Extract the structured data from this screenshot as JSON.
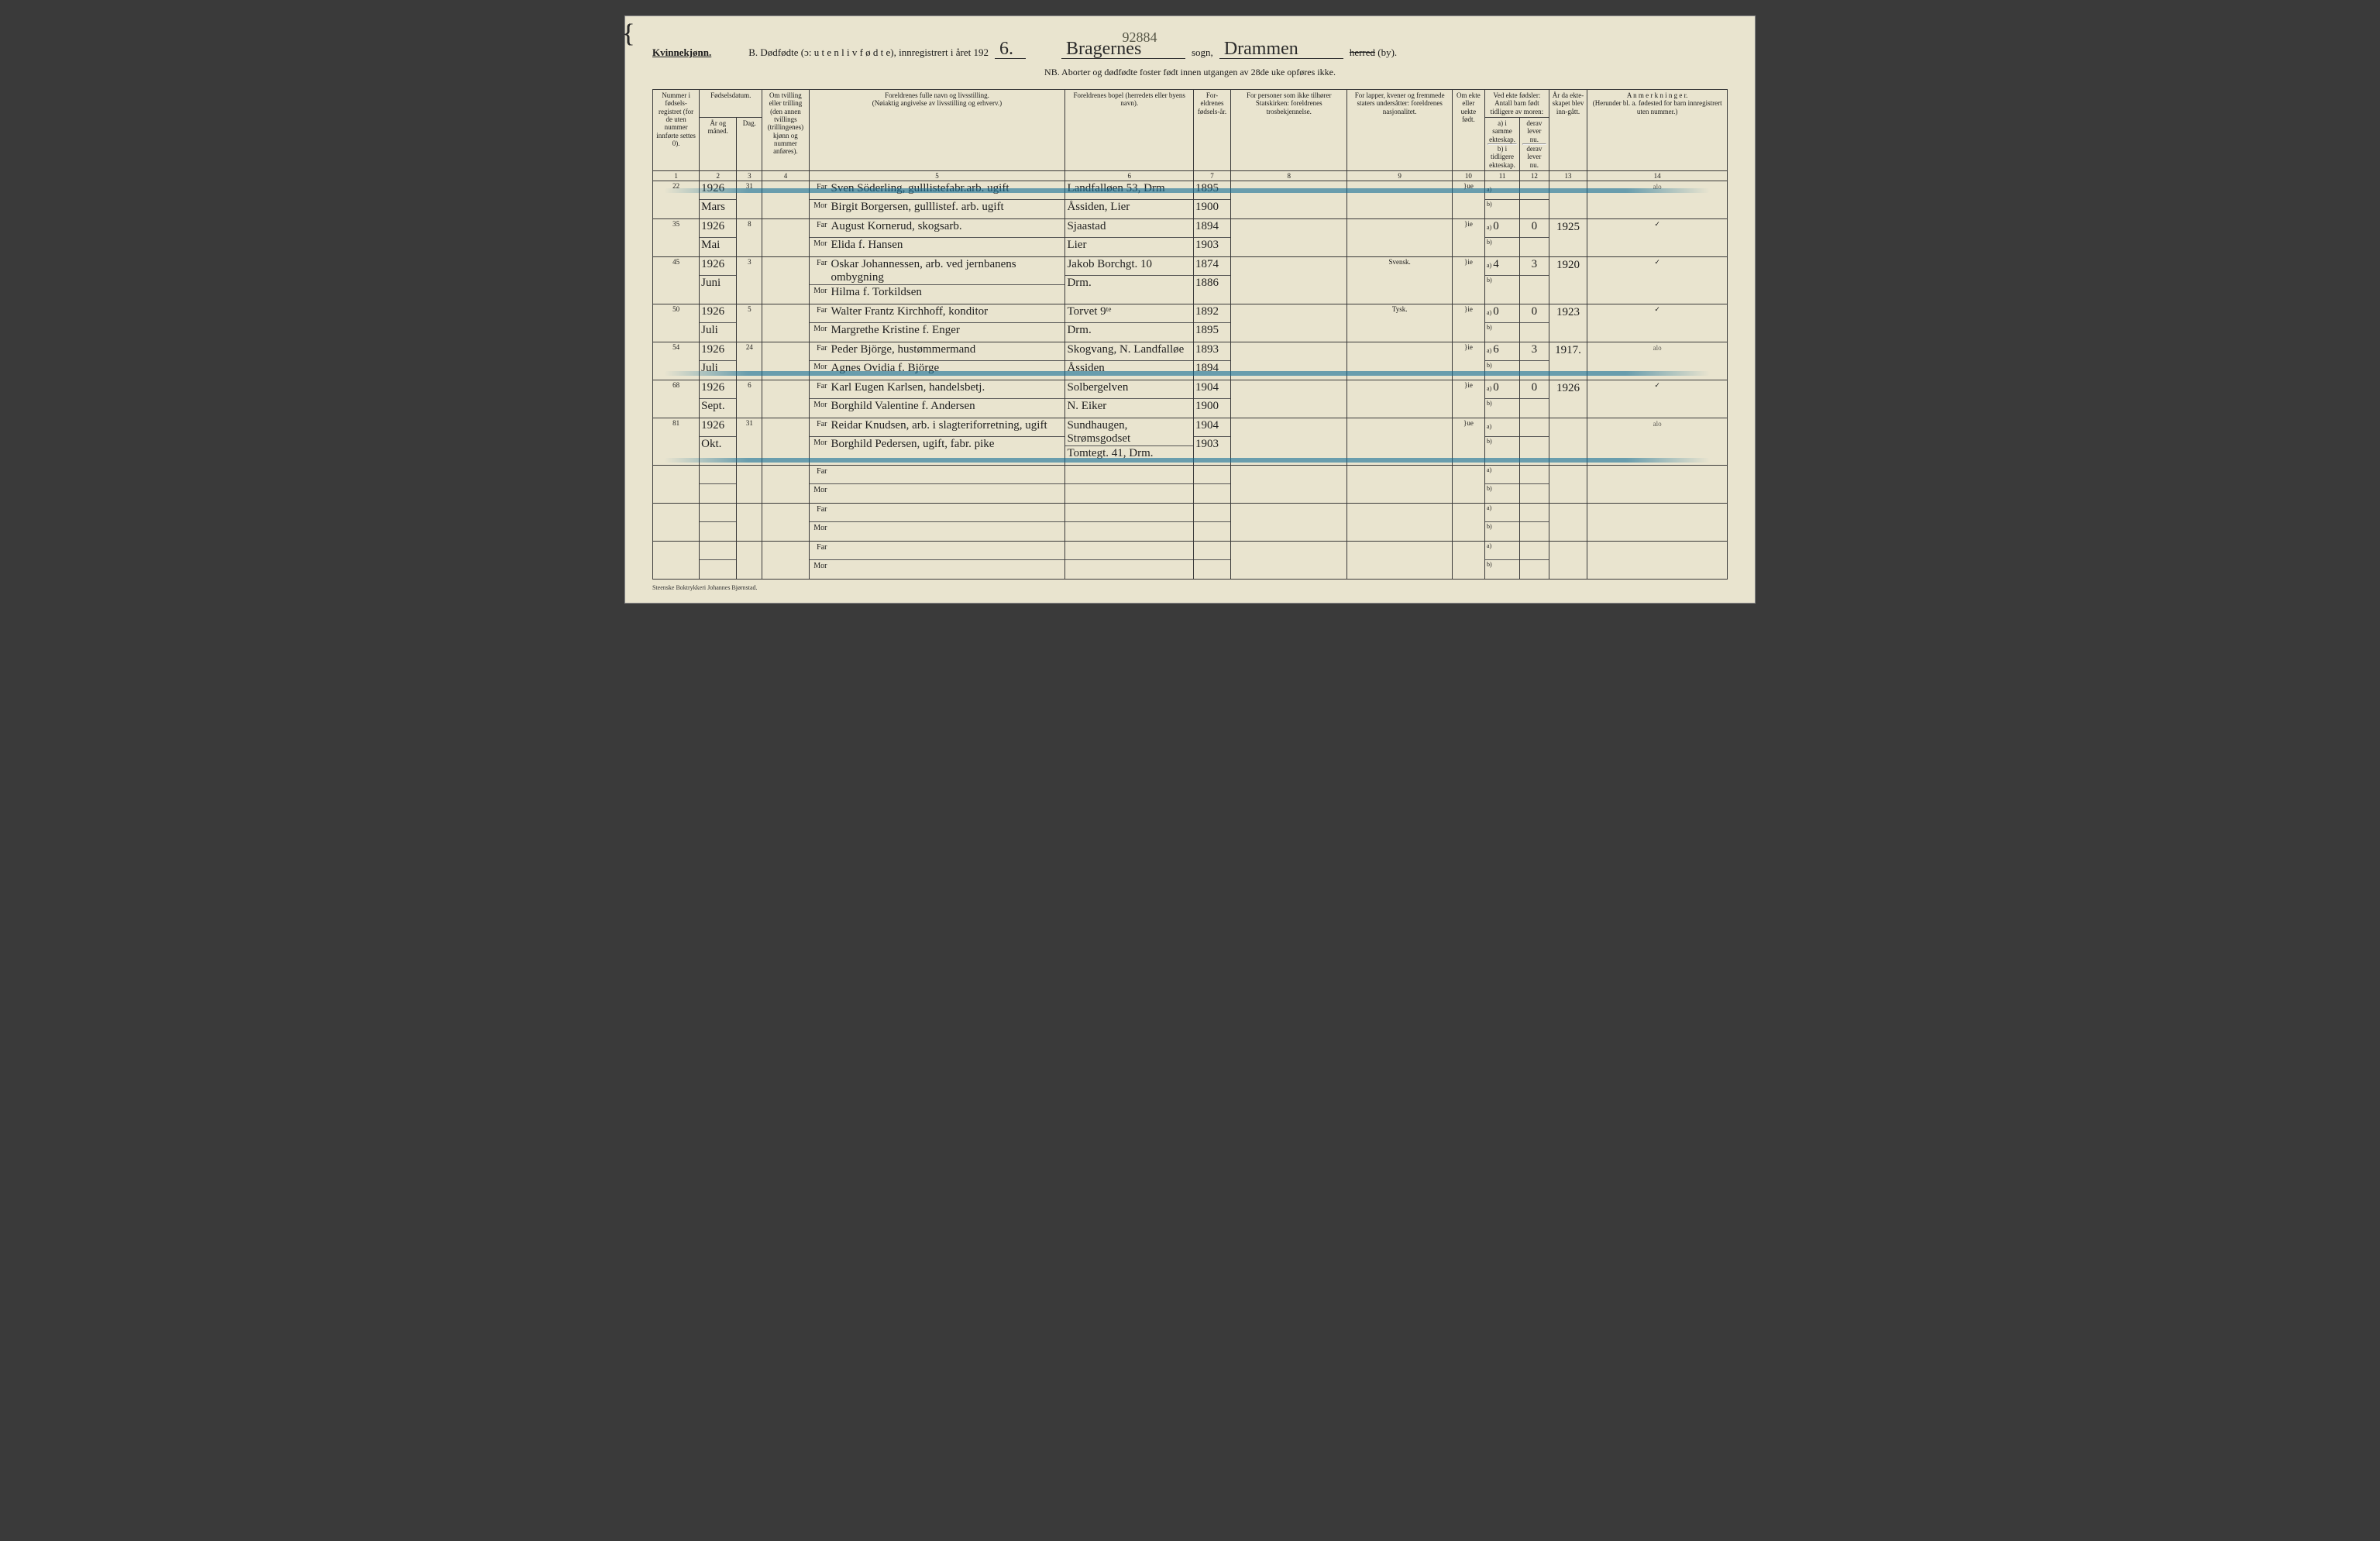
{
  "pencil_top": "92884",
  "header": {
    "kvinne": "Kvinnekjønn.",
    "b_label": "B.  Dødfødte (ɔ:  u t e n  l i v  f ø d t e),  innregistrert i året 192",
    "year_suffix": "6.",
    "sogn_fill": "Bragernes",
    "sogn_label": "sogn,",
    "herred_fill": "Drammen",
    "herred_strike": "herred",
    "by": "(by).",
    "nb": "NB.  Aborter og dødfødte foster født innen utgangen av 28de uke opføres ikke."
  },
  "colheads": {
    "c1": "Nummer i fødsels-registret (for de uten nummer innførte settes 0).",
    "c2_top": "Fødselsdatum.",
    "c2a": "År og måned.",
    "c2b": "Dag.",
    "c4": "Om tvilling eller trilling (den annen tvillings (trillingenes) kjønn og nummer anføres).",
    "c5": "Foreldrenes fulle navn og livsstilling.\n(Nøiaktig angivelse av livsstilling og erhverv.)",
    "c6": "Foreldrenes bopel (herredets eller byens navn).",
    "c7": "For-eldrenes fødsels-år.",
    "c8": "For personer som ikke tilhører Statskirken: foreldrenes trosbekjennelse.",
    "c9": "For lapper, kvener og fremmede staters undersåtter: foreldrenes nasjonalitet.",
    "c10": "Om ekte eller uekte født.",
    "c11_top": "Ved ekte fødsler: Antall barn født tidligere av moren:",
    "c11a": "a) i samme ekteskap.",
    "c11b": "derav lever nu.",
    "c12": "b) i tidligere ekteskap.",
    "c12b": "derav lever nu.",
    "c13": "År da ekte-skapet blev inn-gått.",
    "c14": "A n m e r k n i n g e r.\n(Herunder bl. a. fødested for barn innregistrert uten nummer.)",
    "far": "Far",
    "mor": "Mor",
    "a_label": "a)",
    "b_label": "b)"
  },
  "nums": [
    "1",
    "2",
    "3",
    "4",
    "5",
    "6",
    "7",
    "8",
    "9",
    "10",
    "11",
    "12",
    "13",
    "14"
  ],
  "rows": [
    {
      "num": "22",
      "aar": "1926",
      "maaned": "Mars",
      "dag": "31",
      "far": "Sven Söderling, gulllistefabr.arb.  ugift",
      "mor": "Birgit Borgersen, gulllistef. arb.  ugift",
      "bopel_far": "Landfalløen 53, Drm",
      "bopel_mor": "Åssiden, Lier",
      "faar_far": "1895",
      "faar_mor": "1900",
      "nasj": "",
      "ekte": "ue",
      "c11a": "",
      "c11b": "",
      "c13": "",
      "anm": "alo",
      "crayon": true
    },
    {
      "num": "35",
      "aar": "1926",
      "maaned": "Mai",
      "dag": "8",
      "far": "August Kornerud, skogsarb.",
      "mor": "Elida f. Hansen",
      "bopel_far": "Sjaastad",
      "bopel_mor": "Lier",
      "faar_far": "1894",
      "faar_mor": "1903",
      "nasj": "",
      "ekte": "ie",
      "c11a": "0",
      "c11b": "0",
      "c13": "1925",
      "anm": "✓",
      "crayon": false
    },
    {
      "num": "45",
      "aar": "1926",
      "maaned": "Juni",
      "dag": "3",
      "far": "Oskar Johannessen, arb. ved jernbanens ombygning",
      "mor": "Hilma f. Torkildsen",
      "bopel_far": "Jakob Borchgt. 10",
      "bopel_mor": "Drm.",
      "faar_far": "1874",
      "faar_mor": "1886",
      "nasj": "Svensk.",
      "ekte": "ie",
      "c11a": "4",
      "c11b": "3",
      "c13": "1920",
      "anm": "✓",
      "crayon": false
    },
    {
      "num": "50",
      "aar": "1926",
      "maaned": "Juli",
      "dag": "5",
      "far": "Walter Frantz Kirchhoff, konditor",
      "mor": "Margrethe Kristine f. Enger",
      "bopel_far": "Torvet 9ᵗᵉ",
      "bopel_mor": "Drm.",
      "faar_far": "1892",
      "faar_mor": "1895",
      "nasj": "Tysk.",
      "ekte": "ie",
      "c11a": "0",
      "c11b": "0",
      "c13": "1923",
      "anm": "✓",
      "crayon": false
    },
    {
      "num": "54",
      "aar": "1926",
      "maaned": "Juli",
      "dag": "24",
      "far": "Peder Björge, hustømmermand",
      "mor": "Agnes Ovidia f. Björge",
      "bopel_far": "Skogvang, N. Landfalløe",
      "bopel_mor": "Åssiden",
      "faar_far": "1893",
      "faar_mor": "1894",
      "nasj": "",
      "ekte": "ie",
      "c11a": "6",
      "c11b": "3",
      "c13": "1917.",
      "anm": "alo",
      "crayon": true
    },
    {
      "num": "68",
      "aar": "1926",
      "maaned": "Sept.",
      "dag": "6",
      "far": "Karl Eugen Karlsen, handelsbetj.",
      "mor": "Borghild Valentine f. Andersen",
      "bopel_far": "Solbergelven",
      "bopel_mor": "N. Eiker",
      "faar_far": "1904",
      "faar_mor": "1900",
      "nasj": "",
      "ekte": "ie",
      "c11a": "0",
      "c11b": "0",
      "c13": "1926",
      "anm": "✓",
      "crayon": false
    },
    {
      "num": "81",
      "aar": "1926",
      "maaned": "Okt.",
      "dag": "31",
      "far": "Reidar Knudsen, arb. i slagteriforretning, ugift",
      "mor": "Borghild Pedersen, ugift, fabr. pike",
      "bopel_far": "Sundhaugen, Strømsgodset",
      "bopel_mor": "Tomtegt. 41, Drm.",
      "faar_far": "1904",
      "faar_mor": "1903",
      "nasj": "",
      "ekte": "ue",
      "c11a": "",
      "c11b": "",
      "c13": "",
      "anm": "alo",
      "crayon": true
    },
    {
      "empty": true
    },
    {
      "empty": true
    },
    {
      "empty": true
    }
  ],
  "footer": "Steenske Boktrykkeri Johannes Bjørnstad.",
  "colors": {
    "paper": "#e9e4cf",
    "ink": "#1a1a1a",
    "handwriting": "#1f1f1f",
    "pencil": "#5a5a4a",
    "crayon": "#1a7090"
  }
}
